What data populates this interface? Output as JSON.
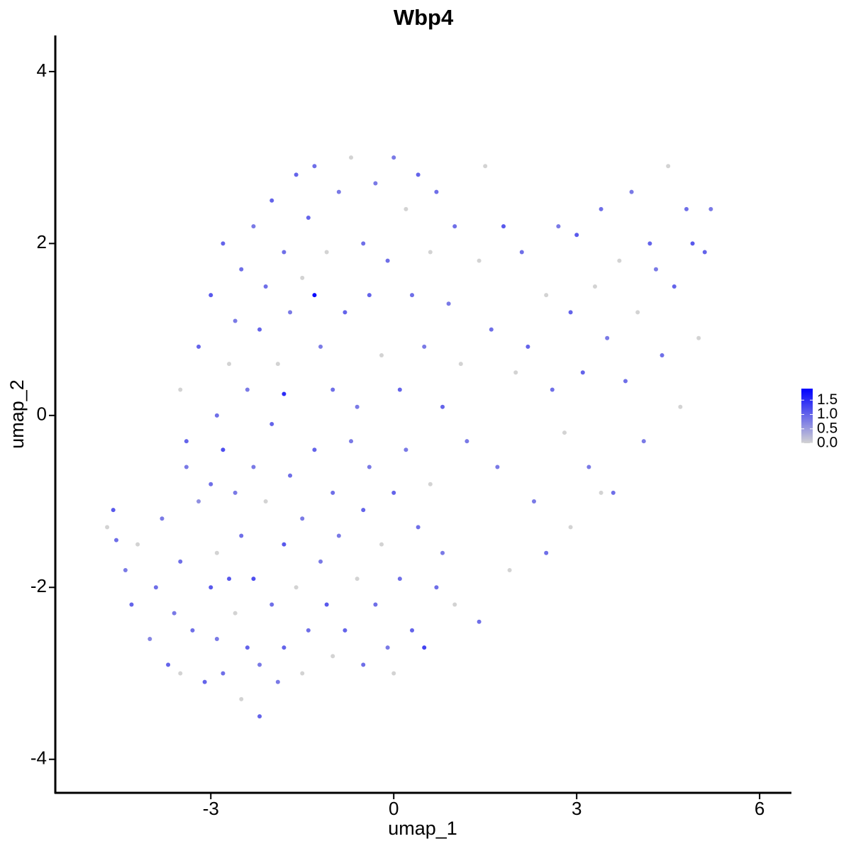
{
  "chart_data": {
    "type": "scatter",
    "title": "Wbp4",
    "x_label": "umap_1",
    "y_label": "umap_2",
    "xlim": [
      -5.55,
      6.51
    ],
    "ylim": [
      -4.39,
      4.42
    ],
    "xticks": [
      -3,
      0,
      3,
      6
    ],
    "yticks": [
      -4,
      -2,
      0,
      2,
      4
    ],
    "color_scale": {
      "low": "#d3d3d3",
      "high": "#0000ff",
      "lim": [
        0,
        1.9
      ],
      "ticks": [
        {
          "value": 0,
          "label": "0.0"
        },
        0.5,
        {
          "value": 1,
          "label": "1.0"
        },
        1.5
      ]
    },
    "x": [
      -4.7,
      -4.6,
      -4.55,
      -4.4,
      -4.3,
      -4.2,
      -4.0,
      -3.9,
      -3.8,
      -3.7,
      -3.6,
      -3.5,
      -3.5,
      -3.4,
      -3.3,
      -3.2,
      -3.1,
      -3.0,
      -3.0,
      -2.9,
      -2.9,
      -2.8,
      -2.8,
      -2.7,
      -2.6,
      -2.6,
      -2.5,
      -2.5,
      -2.4,
      -2.3,
      -2.3,
      -2.2,
      -2.2,
      -2.1,
      -2.0,
      -2.0,
      -1.9,
      -1.8,
      -1.8,
      -1.7,
      -1.6,
      -1.5,
      -1.5,
      -1.4,
      -1.3,
      -1.2,
      -1.1,
      -1.0,
      -1.0,
      -0.9,
      -0.8,
      -0.7,
      -0.6,
      -0.5,
      -0.5,
      -0.4,
      -0.3,
      -0.2,
      -0.1,
      0.0,
      0.0,
      0.1,
      0.2,
      0.3,
      0.4,
      0.5,
      0.6,
      0.7,
      0.8,
      1.0,
      -3.5,
      -3.4,
      -3.2,
      -3.0,
      -2.9,
      -2.8,
      -2.7,
      -2.6,
      -2.5,
      -2.4,
      -2.3,
      -2.2,
      -2.1,
      -2.0,
      -1.9,
      -1.8,
      -1.8,
      -1.7,
      -1.6,
      -1.5,
      -1.4,
      -1.3,
      -1.3,
      -1.2,
      -1.1,
      -1.0,
      -0.9,
      -0.8,
      -0.7,
      -0.6,
      -0.5,
      -0.4,
      -0.3,
      -0.2,
      -0.1,
      0.0,
      0.1,
      0.2,
      0.3,
      0.4,
      0.5,
      0.6,
      0.7,
      0.8,
      0.9,
      1.0,
      1.1,
      1.2,
      1.4,
      1.5,
      1.6,
      1.7,
      1.8,
      2.0,
      2.1,
      2.2,
      2.3,
      2.5,
      2.6,
      2.7,
      2.8,
      2.9,
      3.0,
      3.1,
      3.2,
      3.3,
      3.4,
      3.5,
      3.6,
      3.7,
      3.8,
      3.9,
      4.0,
      4.1,
      4.2,
      4.4,
      4.5,
      4.6,
      4.8,
      5.0,
      5.1,
      5.2,
      4.9,
      4.7,
      4.3,
      3.4,
      2.9,
      2.5,
      1.9,
      1.4
    ],
    "values": [
      -1.3,
      -1.1,
      -1.45,
      -1.8,
      -2.2,
      -1.5,
      -2.6,
      -2.0,
      -1.2,
      -2.9,
      -2.3,
      -3.0,
      -1.7,
      -0.3,
      -2.5,
      -1.0,
      -3.1,
      -2.0,
      -0.8,
      -1.6,
      -2.6,
      -0.4,
      -3.0,
      -1.9,
      -2.3,
      -0.9,
      -3.3,
      -1.4,
      -2.7,
      -0.6,
      -1.9,
      -3.5,
      -2.9,
      -1.0,
      -2.2,
      -0.1,
      -3.1,
      -1.5,
      -2.7,
      -0.7,
      -2.0,
      -3.0,
      -1.2,
      -2.5,
      -0.4,
      -1.7,
      -2.2,
      -2.8,
      -0.9,
      -1.4,
      -2.5,
      -0.3,
      -1.9,
      -2.9,
      -1.1,
      -0.6,
      -2.2,
      -1.5,
      -2.7,
      -0.9,
      -3.0,
      -1.9,
      -0.4,
      -2.5,
      -1.3,
      -2.7,
      -0.8,
      -2.0,
      -1.6,
      -2.2,
      0.3,
      -0.6,
      0.8,
      1.4,
      0.0,
      2.0,
      0.6,
      1.1,
      1.7,
      0.3,
      2.2,
      1.0,
      1.5,
      2.5,
      0.6,
      1.9,
      0.25,
      1.2,
      2.8,
      1.6,
      2.3,
      1.4,
      2.9,
      0.8,
      1.9,
      0.3,
      2.6,
      1.2,
      3.0,
      0.1,
      2.0,
      1.4,
      2.7,
      0.7,
      1.8,
      3.0,
      0.3,
      2.4,
      1.4,
      2.8,
      0.8,
      1.9,
      2.6,
      0.1,
      1.3,
      2.2,
      0.6,
      -0.3,
      1.8,
      2.9,
      1.0,
      -0.6,
      2.2,
      0.5,
      1.9,
      0.8,
      -1.0,
      1.4,
      0.3,
      2.2,
      -0.2,
      1.2,
      2.1,
      0.5,
      -0.6,
      1.5,
      2.4,
      0.9,
      -0.9,
      1.8,
      0.4,
      2.6,
      1.2,
      -0.3,
      2.0,
      0.7,
      2.9,
      1.5,
      2.4,
      0.9,
      1.9,
      2.4,
      2.0,
      0.1,
      1.7,
      -0.9,
      -1.3,
      -1.6,
      -1.8,
      -2.4
    ],
    "expression": [
      0,
      1.1,
      0.9,
      0.8,
      1.0,
      0,
      0.7,
      0.9,
      0.8,
      1.0,
      0.8,
      0,
      0.9,
      1.0,
      0.9,
      0.6,
      1.0,
      1.1,
      0.9,
      0,
      0.8,
      1.2,
      0.9,
      1.1,
      0,
      0.8,
      0,
      0.9,
      1.0,
      0.8,
      1.2,
      1.0,
      0.8,
      0,
      0.9,
      1.0,
      0.8,
      1.1,
      1.0,
      0.9,
      0,
      0,
      0.8,
      0.9,
      1.0,
      0.8,
      1.1,
      0,
      0.9,
      0.8,
      1.0,
      0.8,
      0,
      0.9,
      1.0,
      0.8,
      0.9,
      0,
      0.8,
      1.0,
      0,
      0.9,
      0.8,
      1.0,
      0.9,
      1.3,
      0,
      0.9,
      0.8,
      0,
      0,
      0.8,
      1.0,
      1.1,
      0.9,
      1.0,
      0,
      0.8,
      0.9,
      0.8,
      0.8,
      1.0,
      0.9,
      1.0,
      0,
      0.9,
      1.5,
      0.8,
      1.0,
      0,
      1.0,
      1.8,
      0.9,
      0.8,
      0,
      0.9,
      0.8,
      1.0,
      0,
      0.8,
      0.9,
      1.0,
      0.8,
      0,
      0.9,
      0.8,
      1.0,
      0,
      0.9,
      1.0,
      0.8,
      0,
      0.9,
      1.0,
      0.8,
      0.9,
      0,
      0.8,
      0,
      0,
      0.9,
      0.8,
      1.1,
      0,
      0.9,
      1.0,
      0.8,
      0,
      0.9,
      0.8,
      0,
      1.0,
      1.1,
      1.0,
      0.8,
      0,
      0.9,
      0.8,
      0.9,
      0,
      0.9,
      0.8,
      0,
      0.8,
      1.0,
      0.9,
      0,
      1.0,
      0.9,
      0,
      1.0,
      0.8,
      1.1,
      0,
      0.8,
      0,
      0,
      0.9,
      0,
      0.9
    ]
  }
}
